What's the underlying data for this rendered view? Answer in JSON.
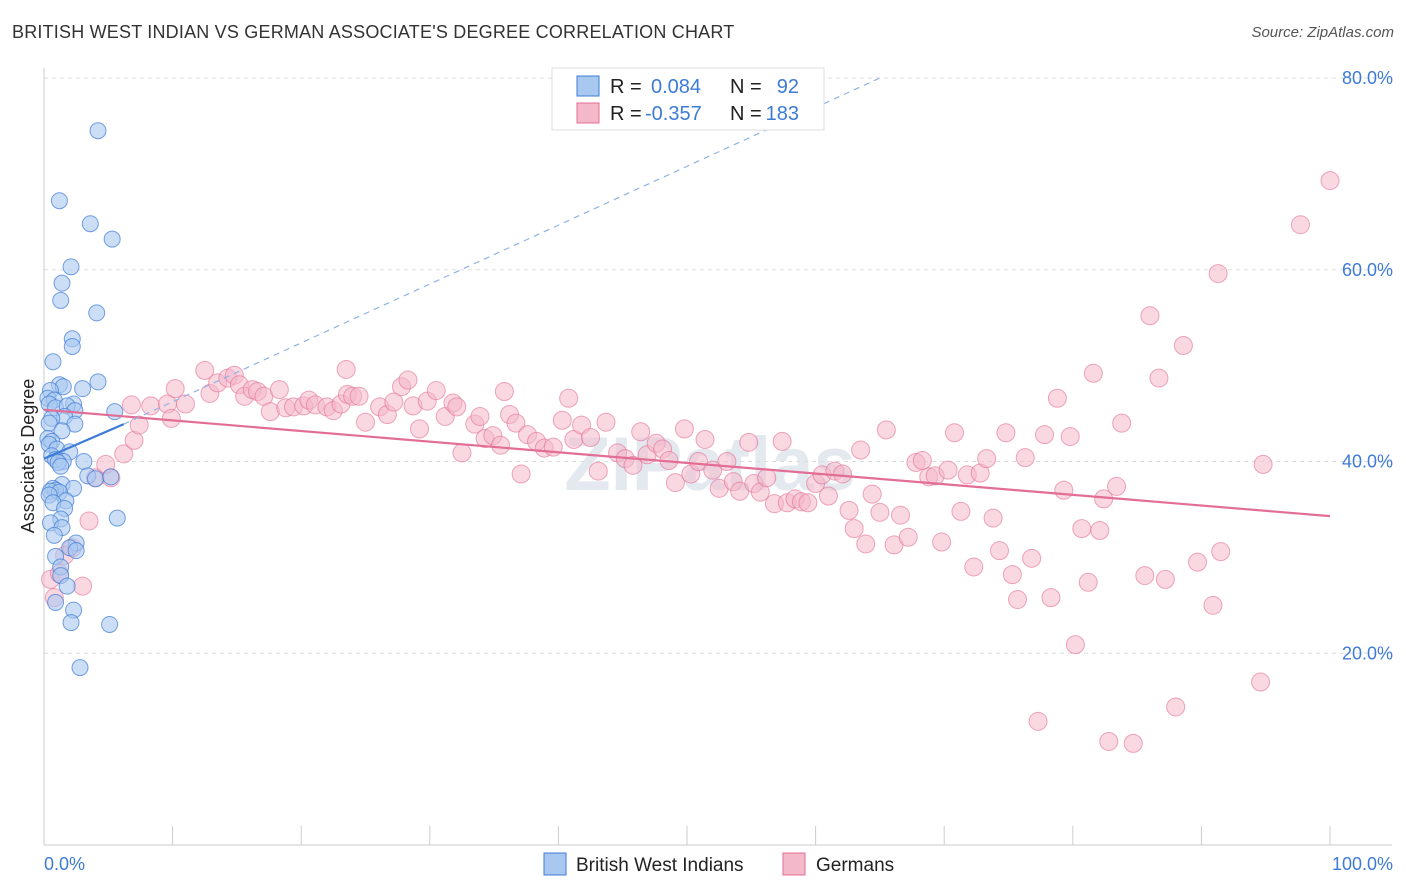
{
  "title": "BRITISH WEST INDIAN VS GERMAN ASSOCIATE'S DEGREE CORRELATION CHART",
  "source": "Source: ZipAtlas.com",
  "watermark": "ZIPatlas",
  "legend": {
    "rows": [
      {
        "r_label": "R =",
        "r_value": "0.084",
        "n_label": "N =",
        "n_value": "92"
      },
      {
        "r_label": "R =",
        "r_value": "-0.357",
        "n_label": "N =",
        "n_value": "183"
      }
    ]
  },
  "bottom_legend": [
    "British West Indians",
    "Germans"
  ],
  "colors": {
    "blue": "#3d7bd6",
    "blue_fill": "#a9c8f0",
    "pink": "#e36e95",
    "pink_fill": "#f4b8cb",
    "grid": "#dddddd",
    "axis_label": "#3d7bd6"
  },
  "chart_data": {
    "type": "scatter",
    "title": "BRITISH WEST INDIAN VS GERMAN ASSOCIATE'S DEGREE CORRELATION CHART",
    "xlabel": "",
    "ylabel": "Associate's Degree",
    "xlim": [
      0,
      100
    ],
    "ylim": [
      0,
      80
    ],
    "x_tick_labels": [
      "0.0%",
      "100.0%"
    ],
    "y_ticks": [
      20,
      40,
      60,
      80
    ],
    "y_tick_labels": [
      "20.0%",
      "40.0%",
      "60.0%",
      "80.0%"
    ],
    "grid": true,
    "legend_position": "top-center",
    "series": [
      {
        "name": "British West Indians",
        "r": 0.084,
        "n": 92,
        "trend": {
          "x": [
            0,
            6.2
          ],
          "y": [
            40.3,
            43.9
          ]
        },
        "trend_extension": {
          "x": [
            6.2,
            65
          ],
          "y": [
            43.9,
            80
          ]
        },
        "points": [
          [
            4.2,
            74.5
          ],
          [
            1.2,
            67.2
          ],
          [
            3.6,
            64.8
          ],
          [
            5.3,
            63.2
          ],
          [
            2.1,
            60.3
          ],
          [
            1.4,
            58.6
          ],
          [
            1.3,
            56.8
          ],
          [
            4.1,
            55.5
          ],
          [
            2.2,
            52.8
          ],
          [
            2.2,
            52.0
          ],
          [
            0.7,
            50.4
          ],
          [
            1.2,
            48.0
          ],
          [
            1.5,
            47.8
          ],
          [
            4.2,
            48.3
          ],
          [
            3.0,
            47.6
          ],
          [
            0.5,
            47.4
          ],
          [
            0.3,
            46.6
          ],
          [
            0.8,
            46.4
          ],
          [
            0.4,
            46.0
          ],
          [
            0.9,
            45.6
          ],
          [
            2.3,
            46.0
          ],
          [
            1.8,
            45.8
          ],
          [
            2.4,
            45.3
          ],
          [
            5.5,
            45.2
          ],
          [
            1.6,
            44.7
          ],
          [
            0.6,
            44.5
          ],
          [
            0.4,
            44.0
          ],
          [
            2.4,
            43.9
          ],
          [
            1.4,
            43.2
          ],
          [
            0.3,
            42.4
          ],
          [
            0.6,
            42.1
          ],
          [
            0.4,
            41.8
          ],
          [
            1.0,
            41.3
          ],
          [
            0.6,
            40.6
          ],
          [
            2.0,
            41.0
          ],
          [
            0.9,
            40.2
          ],
          [
            1.5,
            40.0
          ],
          [
            1.1,
            39.9
          ],
          [
            3.1,
            40.0
          ],
          [
            1.3,
            39.5
          ],
          [
            3.4,
            38.5
          ],
          [
            4.0,
            38.2
          ],
          [
            5.2,
            38.4
          ],
          [
            1.4,
            37.6
          ],
          [
            2.3,
            37.2
          ],
          [
            0.7,
            37.2
          ],
          [
            0.9,
            37.0
          ],
          [
            0.5,
            36.9
          ],
          [
            1.2,
            36.8
          ],
          [
            0.4,
            36.5
          ],
          [
            1.7,
            35.9
          ],
          [
            0.7,
            35.7
          ],
          [
            1.6,
            35.1
          ],
          [
            5.7,
            34.1
          ],
          [
            1.3,
            34.0
          ],
          [
            0.5,
            33.6
          ],
          [
            1.4,
            33.1
          ],
          [
            0.8,
            32.3
          ],
          [
            2.5,
            31.5
          ],
          [
            2.0,
            31.0
          ],
          [
            2.5,
            30.7
          ],
          [
            0.9,
            30.1
          ],
          [
            1.3,
            29.0
          ],
          [
            1.3,
            28.1
          ],
          [
            1.8,
            27.0
          ],
          [
            0.9,
            25.3
          ],
          [
            2.3,
            24.5
          ],
          [
            2.1,
            23.2
          ],
          [
            5.1,
            23.0
          ],
          [
            2.8,
            18.5
          ]
        ]
      },
      {
        "name": "Germans",
        "r": -0.357,
        "n": 183,
        "trend": {
          "x": [
            0,
            100
          ],
          "y": [
            45.4,
            34.3
          ]
        },
        "points": [
          [
            0.5,
            27.7
          ],
          [
            0.8,
            25.8
          ],
          [
            1.2,
            28.3
          ],
          [
            2.2,
            31.0
          ],
          [
            1.6,
            30.2
          ],
          [
            3.5,
            33.8
          ],
          [
            4.0,
            38.3
          ],
          [
            5.2,
            38.3
          ],
          [
            4.8,
            39.7
          ],
          [
            6.2,
            40.8
          ],
          [
            7.0,
            42.2
          ],
          [
            7.4,
            43.8
          ],
          [
            8.3,
            45.8
          ],
          [
            9.6,
            46.0
          ],
          [
            9.9,
            44.5
          ],
          [
            10.2,
            47.6
          ],
          [
            11.0,
            46.0
          ],
          [
            12.5,
            49.5
          ],
          [
            12.9,
            47.1
          ],
          [
            13.5,
            48.2
          ],
          [
            14.3,
            48.7
          ],
          [
            14.8,
            49.0
          ],
          [
            15.2,
            48.0
          ],
          [
            15.6,
            46.8
          ],
          [
            16.2,
            47.5
          ],
          [
            16.6,
            47.3
          ],
          [
            17.1,
            46.8
          ],
          [
            17.6,
            45.2
          ],
          [
            18.3,
            47.5
          ],
          [
            18.8,
            45.6
          ],
          [
            19.4,
            45.7
          ],
          [
            20.2,
            45.8
          ],
          [
            20.6,
            46.4
          ],
          [
            21.1,
            45.9
          ],
          [
            22.0,
            45.7
          ],
          [
            22.5,
            45.3
          ],
          [
            23.1,
            46.0
          ],
          [
            23.6,
            47.0
          ],
          [
            24.0,
            46.8
          ],
          [
            24.5,
            46.8
          ],
          [
            23.5,
            49.6
          ],
          [
            25.0,
            44.1
          ],
          [
            26.1,
            45.7
          ],
          [
            26.7,
            44.9
          ],
          [
            27.2,
            46.2
          ],
          [
            27.8,
            47.8
          ],
          [
            28.3,
            48.5
          ],
          [
            28.7,
            45.8
          ],
          [
            29.2,
            43.4
          ],
          [
            29.8,
            46.3
          ],
          [
            30.5,
            47.4
          ],
          [
            31.2,
            44.7
          ],
          [
            31.8,
            46.1
          ],
          [
            32.1,
            45.7
          ],
          [
            32.5,
            40.9
          ],
          [
            33.5,
            43.9
          ],
          [
            33.9,
            44.7
          ],
          [
            34.3,
            42.4
          ],
          [
            34.9,
            42.7
          ],
          [
            35.5,
            41.7
          ],
          [
            35.8,
            47.3
          ],
          [
            36.2,
            44.9
          ],
          [
            36.7,
            44.0
          ],
          [
            37.1,
            38.7
          ],
          [
            37.6,
            42.8
          ],
          [
            38.3,
            42.1
          ],
          [
            38.9,
            41.4
          ],
          [
            39.6,
            41.5
          ],
          [
            40.3,
            44.3
          ],
          [
            40.8,
            46.6
          ],
          [
            41.2,
            42.3
          ],
          [
            41.8,
            43.8
          ],
          [
            42.5,
            42.5
          ],
          [
            43.1,
            39.0
          ],
          [
            43.7,
            44.1
          ],
          [
            44.6,
            40.9
          ],
          [
            45.2,
            40.3
          ],
          [
            45.8,
            39.6
          ],
          [
            46.4,
            43.1
          ],
          [
            46.9,
            40.7
          ],
          [
            47.6,
            41.9
          ],
          [
            48.1,
            41.3
          ],
          [
            48.6,
            40.1
          ],
          [
            49.1,
            37.8
          ],
          [
            49.8,
            43.4
          ],
          [
            50.3,
            38.7
          ],
          [
            50.9,
            40.0
          ],
          [
            51.4,
            42.3
          ],
          [
            52.0,
            39.1
          ],
          [
            52.5,
            37.2
          ],
          [
            53.1,
            40.0
          ],
          [
            53.6,
            37.9
          ],
          [
            54.1,
            36.9
          ],
          [
            54.8,
            42.0
          ],
          [
            55.2,
            37.7
          ],
          [
            55.7,
            36.8
          ],
          [
            56.2,
            38.3
          ],
          [
            56.8,
            35.6
          ],
          [
            57.4,
            42.1
          ],
          [
            57.8,
            35.7
          ],
          [
            58.4,
            36.1
          ],
          [
            58.9,
            35.8
          ],
          [
            59.4,
            35.7
          ],
          [
            60.0,
            37.7
          ],
          [
            60.5,
            38.6
          ],
          [
            61.0,
            36.4
          ],
          [
            61.5,
            39.0
          ],
          [
            62.1,
            38.7
          ],
          [
            62.6,
            34.9
          ],
          [
            63.0,
            33.0
          ],
          [
            63.5,
            41.2
          ],
          [
            63.9,
            31.4
          ],
          [
            64.4,
            36.6
          ],
          [
            65.0,
            34.7
          ],
          [
            65.5,
            43.3
          ],
          [
            66.1,
            31.3
          ],
          [
            66.6,
            34.4
          ],
          [
            67.2,
            32.1
          ],
          [
            67.8,
            39.9
          ],
          [
            68.3,
            40.1
          ],
          [
            68.8,
            38.4
          ],
          [
            69.3,
            38.5
          ],
          [
            69.8,
            31.6
          ],
          [
            70.3,
            39.1
          ],
          [
            70.8,
            43.0
          ],
          [
            71.3,
            34.8
          ],
          [
            71.8,
            38.6
          ],
          [
            72.3,
            29.0
          ],
          [
            72.8,
            38.8
          ],
          [
            73.3,
            40.3
          ],
          [
            73.8,
            34.1
          ],
          [
            74.3,
            30.7
          ],
          [
            74.8,
            43.0
          ],
          [
            75.3,
            28.2
          ],
          [
            75.7,
            25.6
          ],
          [
            76.3,
            40.4
          ],
          [
            76.8,
            29.9
          ],
          [
            77.3,
            12.9
          ],
          [
            77.8,
            42.8
          ],
          [
            78.3,
            25.8
          ],
          [
            78.8,
            46.6
          ],
          [
            79.3,
            37.0
          ],
          [
            79.8,
            42.6
          ],
          [
            80.2,
            20.9
          ],
          [
            80.7,
            33.0
          ],
          [
            81.2,
            27.4
          ],
          [
            81.6,
            49.2
          ],
          [
            82.1,
            32.8
          ],
          [
            82.4,
            36.1
          ],
          [
            82.8,
            10.8
          ],
          [
            83.4,
            37.4
          ],
          [
            83.8,
            44.0
          ],
          [
            84.7,
            10.6
          ],
          [
            85.6,
            28.1
          ],
          [
            86.0,
            55.2
          ],
          [
            86.7,
            48.7
          ],
          [
            87.2,
            27.7
          ],
          [
            88.0,
            14.4
          ],
          [
            88.6,
            52.1
          ],
          [
            89.7,
            29.5
          ],
          [
            90.9,
            25.0
          ],
          [
            91.3,
            59.6
          ],
          [
            91.5,
            30.6
          ],
          [
            94.6,
            17.0
          ],
          [
            94.8,
            39.7
          ],
          [
            97.7,
            64.7
          ],
          [
            100.0,
            69.3
          ],
          [
            3.0,
            27.0
          ],
          [
            6.8,
            45.9
          ]
        ]
      }
    ]
  }
}
